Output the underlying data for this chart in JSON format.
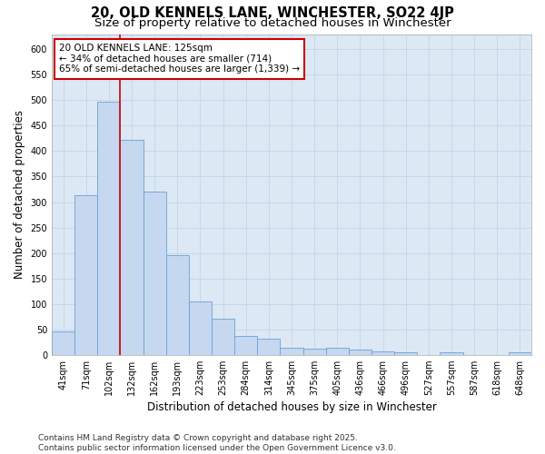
{
  "title1": "20, OLD KENNELS LANE, WINCHESTER, SO22 4JP",
  "title2": "Size of property relative to detached houses in Winchester",
  "xlabel": "Distribution of detached houses by size in Winchester",
  "ylabel": "Number of detached properties",
  "categories": [
    "41sqm",
    "71sqm",
    "102sqm",
    "132sqm",
    "162sqm",
    "193sqm",
    "223sqm",
    "253sqm",
    "284sqm",
    "314sqm",
    "345sqm",
    "375sqm",
    "405sqm",
    "436sqm",
    "466sqm",
    "496sqm",
    "527sqm",
    "557sqm",
    "587sqm",
    "618sqm",
    "648sqm"
  ],
  "values": [
    45,
    314,
    498,
    423,
    320,
    195,
    105,
    70,
    37,
    32,
    13,
    12,
    14,
    10,
    6,
    5,
    0,
    4,
    0,
    0,
    5
  ],
  "bar_color": "#c5d8f0",
  "bar_edge_color": "#6a9fd8",
  "vline_x": 2.5,
  "vline_color": "#cc0000",
  "annotation_line1": "20 OLD KENNELS LANE: 125sqm",
  "annotation_line2": "← 34% of detached houses are smaller (714)",
  "annotation_line3": "65% of semi-detached houses are larger (1,339) →",
  "annotation_box_color": "#cc0000",
  "ylim": [
    0,
    630
  ],
  "yticks": [
    0,
    50,
    100,
    150,
    200,
    250,
    300,
    350,
    400,
    450,
    500,
    550,
    600
  ],
  "grid_color": "#c8d8e8",
  "bg_color": "#dce8f4",
  "footer": "Contains HM Land Registry data © Crown copyright and database right 2025.\nContains public sector information licensed under the Open Government Licence v3.0.",
  "title1_fontsize": 10.5,
  "title2_fontsize": 9.5,
  "xlabel_fontsize": 8.5,
  "ylabel_fontsize": 8.5,
  "tick_fontsize": 7,
  "footer_fontsize": 6.5,
  "ann_fontsize": 7.5
}
